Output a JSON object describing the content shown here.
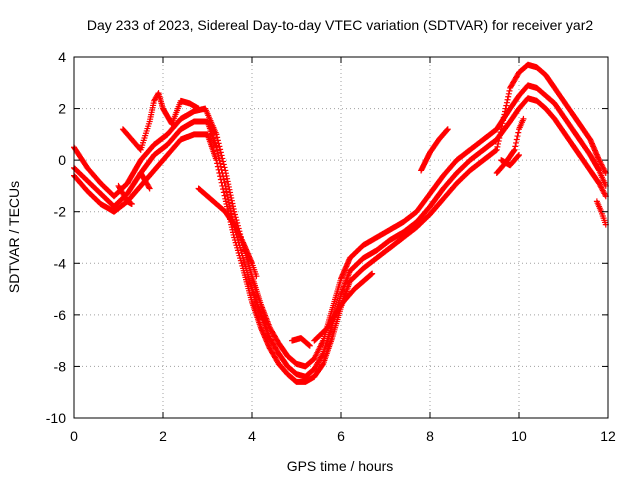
{
  "chart_data": {
    "type": "scatter",
    "title": "Day 233 of 2023, Sidereal Day-to-day VTEC variation (SDTVAR) for receiver yar2",
    "xlabel": "GPS time / hours",
    "ylabel": "SDTVAR / TECUs",
    "xlim": [
      0,
      12
    ],
    "ylim": [
      -10,
      4
    ],
    "xticks": [
      0,
      2,
      4,
      6,
      8,
      10,
      12
    ],
    "yticks": [
      -10,
      -8,
      -6,
      -4,
      -2,
      0,
      2,
      4
    ],
    "xtick_labels": [
      "0",
      "2",
      "4",
      "6",
      "8",
      "10",
      "12"
    ],
    "ytick_labels": [
      "-10",
      "-8",
      "-6",
      "-4",
      "-2",
      "0",
      "2",
      "4"
    ],
    "grid": true,
    "marker": "+",
    "color": "#ff0000",
    "series": [
      {
        "points": [
          [
            0.0,
            0.5
          ],
          [
            0.3,
            -0.3
          ],
          [
            0.6,
            -0.9
          ],
          [
            0.9,
            -1.4
          ],
          [
            1.2,
            -0.9
          ],
          [
            1.5,
            0.0
          ],
          [
            1.8,
            0.6
          ],
          [
            2.1,
            1.0
          ],
          [
            2.4,
            1.6
          ],
          [
            2.7,
            1.9
          ],
          [
            2.95,
            2.0
          ],
          [
            3.2,
            1.0
          ],
          [
            3.4,
            -0.4
          ],
          [
            3.6,
            -2.0
          ],
          [
            3.8,
            -3.3
          ],
          [
            4.0,
            -4.5
          ],
          [
            4.2,
            -5.6
          ],
          [
            4.4,
            -6.5
          ],
          [
            4.6,
            -7.1
          ],
          [
            4.8,
            -7.6
          ],
          [
            5.0,
            -7.9
          ],
          [
            5.2,
            -8.0
          ],
          [
            5.4,
            -7.7
          ],
          [
            5.6,
            -7.0
          ],
          [
            5.8,
            -5.8
          ],
          [
            6.0,
            -4.6
          ],
          [
            6.2,
            -3.8
          ],
          [
            6.5,
            -3.3
          ],
          [
            6.8,
            -3.0
          ],
          [
            7.1,
            -2.7
          ],
          [
            7.4,
            -2.4
          ],
          [
            7.7,
            -2.0
          ],
          [
            8.0,
            -1.3
          ],
          [
            8.3,
            -0.6
          ],
          [
            8.6,
            0.0
          ],
          [
            8.9,
            0.4
          ],
          [
            9.2,
            0.8
          ],
          [
            9.5,
            1.2
          ],
          [
            9.8,
            2.0
          ],
          [
            10.0,
            2.5
          ],
          [
            10.2,
            2.9
          ],
          [
            10.4,
            2.8
          ],
          [
            10.6,
            2.5
          ],
          [
            10.8,
            2.2
          ],
          [
            11.0,
            1.7
          ],
          [
            11.2,
            1.2
          ],
          [
            11.4,
            0.7
          ],
          [
            11.6,
            0.2
          ],
          [
            11.8,
            -0.4
          ],
          [
            11.95,
            -1.0
          ]
        ]
      },
      {
        "points": [
          [
            0.0,
            -0.3
          ],
          [
            0.3,
            -0.8
          ],
          [
            0.6,
            -1.3
          ],
          [
            0.9,
            -1.8
          ],
          [
            1.2,
            -1.3
          ],
          [
            1.5,
            -0.5
          ],
          [
            1.8,
            0.2
          ],
          [
            2.1,
            0.6
          ],
          [
            2.4,
            1.2
          ],
          [
            2.7,
            1.5
          ],
          [
            3.0,
            1.5
          ],
          [
            3.2,
            0.5
          ],
          [
            3.4,
            -1.0
          ],
          [
            3.6,
            -2.6
          ],
          [
            3.8,
            -3.8
          ],
          [
            4.0,
            -5.0
          ],
          [
            4.2,
            -6.0
          ],
          [
            4.4,
            -6.9
          ],
          [
            4.6,
            -7.5
          ],
          [
            4.8,
            -8.0
          ],
          [
            5.0,
            -8.3
          ],
          [
            5.2,
            -8.4
          ],
          [
            5.4,
            -8.1
          ],
          [
            5.6,
            -7.5
          ],
          [
            5.8,
            -6.4
          ],
          [
            6.0,
            -5.2
          ],
          [
            6.2,
            -4.3
          ],
          [
            6.5,
            -3.8
          ],
          [
            6.8,
            -3.5
          ],
          [
            7.1,
            -3.1
          ],
          [
            7.4,
            -2.8
          ],
          [
            7.7,
            -2.4
          ],
          [
            8.0,
            -1.8
          ],
          [
            8.3,
            -1.1
          ],
          [
            8.6,
            -0.5
          ],
          [
            8.9,
            0.0
          ],
          [
            9.2,
            0.4
          ],
          [
            9.5,
            0.8
          ],
          [
            9.8,
            1.5
          ],
          [
            10.0,
            2.0
          ],
          [
            10.2,
            2.4
          ],
          [
            10.4,
            2.3
          ],
          [
            10.6,
            2.0
          ],
          [
            10.8,
            1.6
          ],
          [
            11.0,
            1.1
          ],
          [
            11.2,
            0.6
          ],
          [
            11.4,
            0.1
          ],
          [
            11.6,
            -0.4
          ],
          [
            11.8,
            -0.9
          ],
          [
            11.95,
            -1.4
          ]
        ]
      },
      {
        "points": [
          [
            0.0,
            -0.6
          ],
          [
            0.3,
            -1.2
          ],
          [
            0.6,
            -1.7
          ],
          [
            0.9,
            -2.0
          ],
          [
            1.2,
            -1.6
          ],
          [
            1.5,
            -1.0
          ],
          [
            1.8,
            -0.4
          ],
          [
            2.1,
            0.2
          ],
          [
            2.4,
            0.8
          ],
          [
            2.7,
            1.0
          ],
          [
            3.0,
            1.0
          ],
          [
            3.2,
            0.0
          ],
          [
            3.4,
            -1.5
          ],
          [
            3.6,
            -3.0
          ],
          [
            3.8,
            -4.2
          ],
          [
            4.0,
            -5.5
          ],
          [
            4.2,
            -6.5
          ],
          [
            4.4,
            -7.3
          ],
          [
            4.6,
            -7.9
          ],
          [
            4.8,
            -8.3
          ],
          [
            5.0,
            -8.6
          ],
          [
            5.2,
            -8.6
          ],
          [
            5.4,
            -8.4
          ],
          [
            5.6,
            -7.9
          ],
          [
            5.8,
            -6.9
          ],
          [
            6.0,
            -5.7
          ],
          [
            6.2,
            -4.7
          ],
          [
            6.5,
            -4.2
          ],
          [
            6.8,
            -3.8
          ],
          [
            7.1,
            -3.4
          ],
          [
            7.4,
            -3.0
          ],
          [
            7.7,
            -2.6
          ],
          [
            8.0,
            -2.1
          ],
          [
            8.3,
            -1.5
          ],
          [
            8.6,
            -0.9
          ],
          [
            8.9,
            -0.4
          ],
          [
            9.2,
            0.0
          ],
          [
            9.5,
            0.4
          ],
          [
            9.8,
            2.8
          ],
          [
            10.0,
            3.4
          ],
          [
            10.2,
            3.7
          ],
          [
            10.4,
            3.6
          ],
          [
            10.6,
            3.3
          ],
          [
            10.8,
            2.8
          ],
          [
            11.0,
            2.3
          ],
          [
            11.2,
            1.8
          ],
          [
            11.4,
            1.3
          ],
          [
            11.6,
            0.8
          ],
          [
            11.8,
            0.0
          ],
          [
            11.95,
            -0.5
          ]
        ]
      },
      {
        "points": [
          [
            1.1,
            1.2
          ],
          [
            1.3,
            0.8
          ],
          [
            1.5,
            0.4
          ],
          [
            1.7,
            1.5
          ],
          [
            1.8,
            2.3
          ],
          [
            1.9,
            2.6
          ],
          [
            2.0,
            2.0
          ],
          [
            2.2,
            1.4
          ],
          [
            2.4,
            2.3
          ],
          [
            2.6,
            2.2
          ],
          [
            2.8,
            2.0
          ]
        ]
      },
      {
        "points": [
          [
            2.8,
            -1.1
          ],
          [
            3.0,
            -1.4
          ],
          [
            3.2,
            -1.7
          ],
          [
            3.4,
            -2.0
          ],
          [
            3.6,
            -2.5
          ],
          [
            3.8,
            -3.2
          ],
          [
            4.0,
            -4.0
          ],
          [
            4.1,
            -4.5
          ]
        ]
      },
      {
        "points": [
          [
            1.0,
            -1.0
          ],
          [
            1.2,
            -1.6
          ],
          [
            1.3,
            -1.7
          ]
        ]
      },
      {
        "points": [
          [
            1.5,
            -0.5
          ],
          [
            1.6,
            -0.8
          ],
          [
            1.7,
            -1.1
          ]
        ]
      },
      {
        "points": [
          [
            5.4,
            -7.0
          ],
          [
            5.7,
            -6.5
          ],
          [
            6.0,
            -5.6
          ],
          [
            6.3,
            -5.0
          ],
          [
            6.5,
            -4.7
          ],
          [
            6.7,
            -4.4
          ]
        ]
      },
      {
        "points": [
          [
            4.9,
            -7.0
          ],
          [
            5.1,
            -6.9
          ],
          [
            5.3,
            -7.2
          ]
        ]
      },
      {
        "points": [
          [
            7.8,
            -0.4
          ],
          [
            8.0,
            0.3
          ],
          [
            8.2,
            0.8
          ],
          [
            8.4,
            1.2
          ]
        ]
      },
      {
        "points": [
          [
            9.5,
            -0.5
          ],
          [
            9.7,
            -0.1
          ],
          [
            9.9,
            0.4
          ],
          [
            10.0,
            1.2
          ],
          [
            10.1,
            1.6
          ]
        ]
      },
      {
        "points": [
          [
            11.75,
            -1.6
          ],
          [
            11.85,
            -2.0
          ],
          [
            11.95,
            -2.5
          ]
        ]
      },
      {
        "points": [
          [
            9.6,
            0.0
          ],
          [
            9.8,
            -0.2
          ],
          [
            10.0,
            0.2
          ]
        ]
      }
    ]
  }
}
